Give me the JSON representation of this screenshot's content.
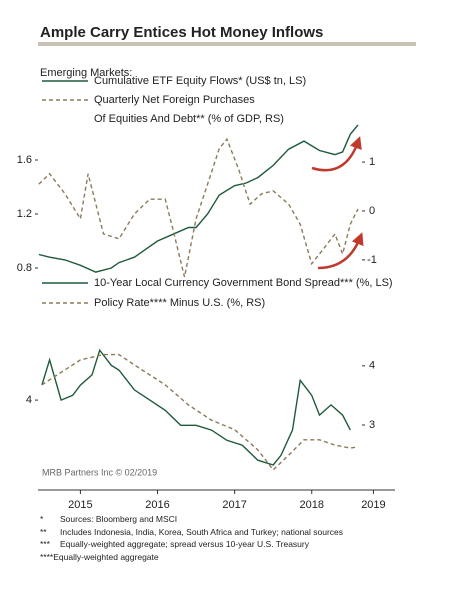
{
  "title": "Ample Carry Entices Hot Money Inflows",
  "source_note": "MRB Partners Inc © 02/2019",
  "footnotes": [
    {
      "mark": "*",
      "text": "Sources: Bloomberg and MSCI"
    },
    {
      "mark": "**",
      "text": "Includes Indonesia, India, Korea, South Africa and Turkey; national sources"
    },
    {
      "mark": "***",
      "text": "Equally-weighted aggregate; spread versus 10-year U.S. Treasury"
    },
    {
      "mark": "****",
      "text": "Equally-weighted aggregate"
    }
  ],
  "chart_data": [
    {
      "type": "line",
      "legend_title": "Emerging Markets:",
      "xlim": [
        2014.95,
        2019.45
      ],
      "ylim": [
        0.65,
        1.9
      ],
      "yticks": [
        0.8,
        1.2,
        1.6
      ],
      "y2lim": [
        -1.58,
        1.87
      ],
      "y2ticks": [
        -1,
        0,
        1
      ],
      "series": [
        {
          "name": "Cumulative ETF Equity Flows* (US$ tn, LS)",
          "color": "#1e5a3a",
          "dash": false,
          "x": [
            2014.96,
            2015.1,
            2015.3,
            2015.5,
            2015.7,
            2015.9,
            2016.0,
            2016.2,
            2016.5,
            2016.7,
            2016.9,
            2017.0,
            2017.15,
            2017.3,
            2017.5,
            2017.65,
            2017.8,
            2018.0,
            2018.2,
            2018.4,
            2018.6,
            2018.8,
            2018.9,
            2019.0,
            2019.1
          ],
          "values": [
            0.9,
            0.88,
            0.86,
            0.82,
            0.77,
            0.8,
            0.84,
            0.88,
            1.0,
            1.05,
            1.1,
            1.1,
            1.2,
            1.34,
            1.41,
            1.43,
            1.47,
            1.56,
            1.68,
            1.74,
            1.67,
            1.64,
            1.66,
            1.79,
            1.86
          ]
        },
        {
          "name": "Quarterly Net Foreign Purchases\nOf Equities And Debt** (% of GDP, RS)",
          "color": "#8b7a5a",
          "dash": true,
          "axis": "y2",
          "x": [
            2014.96,
            2015.1,
            2015.3,
            2015.5,
            2015.6,
            2015.8,
            2016.0,
            2016.2,
            2016.4,
            2016.6,
            2016.7,
            2016.85,
            2017.0,
            2017.15,
            2017.3,
            2017.4,
            2017.55,
            2017.7,
            2017.85,
            2018.0,
            2018.2,
            2018.35,
            2018.5,
            2018.65,
            2018.8,
            2018.9,
            2019.0,
            2019.1
          ],
          "values": [
            0.55,
            0.76,
            0.35,
            -0.16,
            0.76,
            -0.47,
            -0.57,
            -0.06,
            0.24,
            0.24,
            -0.37,
            -1.35,
            -0.16,
            0.55,
            1.27,
            1.47,
            0.86,
            0.14,
            0.35,
            0.41,
            0.14,
            -0.27,
            -1.08,
            -0.78,
            -0.47,
            -0.88,
            -0.27,
            0.04
          ]
        }
      ]
    },
    {
      "type": "line",
      "xlim": [
        2014.95,
        2019.45
      ],
      "xticks": [
        {
          "value": 2015.5,
          "label": "2015"
        },
        {
          "value": 2016.5,
          "label": "2016"
        },
        {
          "value": 2017.5,
          "label": "2017"
        },
        {
          "value": 2018.5,
          "label": "2018"
        },
        {
          "value": 2019.3,
          "label": "2019"
        }
      ],
      "ylim": [
        2.67,
        5.25
      ],
      "yticks": [
        4
      ],
      "y2lim": [
        2.07,
        4.69
      ],
      "y2ticks": [
        3,
        4
      ],
      "series": [
        {
          "name": "10-Year Local Currency Government Bond Spread*** (%, LS)",
          "color": "#1e5a3a",
          "dash": false,
          "x": [
            2015.0,
            2015.1,
            2015.25,
            2015.4,
            2015.5,
            2015.65,
            2015.75,
            2015.9,
            2016.0,
            2016.2,
            2016.4,
            2016.6,
            2016.8,
            2017.0,
            2017.2,
            2017.4,
            2017.6,
            2017.8,
            2018.0,
            2018.1,
            2018.25,
            2018.35,
            2018.5,
            2018.6,
            2018.75,
            2018.9,
            2019.0
          ],
          "values": [
            4.25,
            4.67,
            4.0,
            4.08,
            4.25,
            4.42,
            4.83,
            4.58,
            4.5,
            4.17,
            4.0,
            3.83,
            3.58,
            3.58,
            3.5,
            3.33,
            3.25,
            3.0,
            2.92,
            3.08,
            3.5,
            4.33,
            4.08,
            3.75,
            3.92,
            3.75,
            3.5
          ]
        },
        {
          "name": "Policy Rate**** Minus U.S. (%, RS)",
          "color": "#8b7a5a",
          "dash": true,
          "axis": "y2",
          "x": [
            2015.0,
            2015.5,
            2015.8,
            2016.0,
            2016.3,
            2016.6,
            2016.9,
            2017.2,
            2017.5,
            2017.8,
            2018.0,
            2018.2,
            2018.4,
            2018.6,
            2018.8,
            2019.0,
            2019.1
          ],
          "values": [
            3.68,
            4.1,
            4.19,
            4.19,
            3.93,
            3.68,
            3.34,
            3.08,
            2.92,
            2.58,
            2.24,
            2.49,
            2.75,
            2.75,
            2.66,
            2.61,
            2.63
          ]
        }
      ]
    }
  ]
}
